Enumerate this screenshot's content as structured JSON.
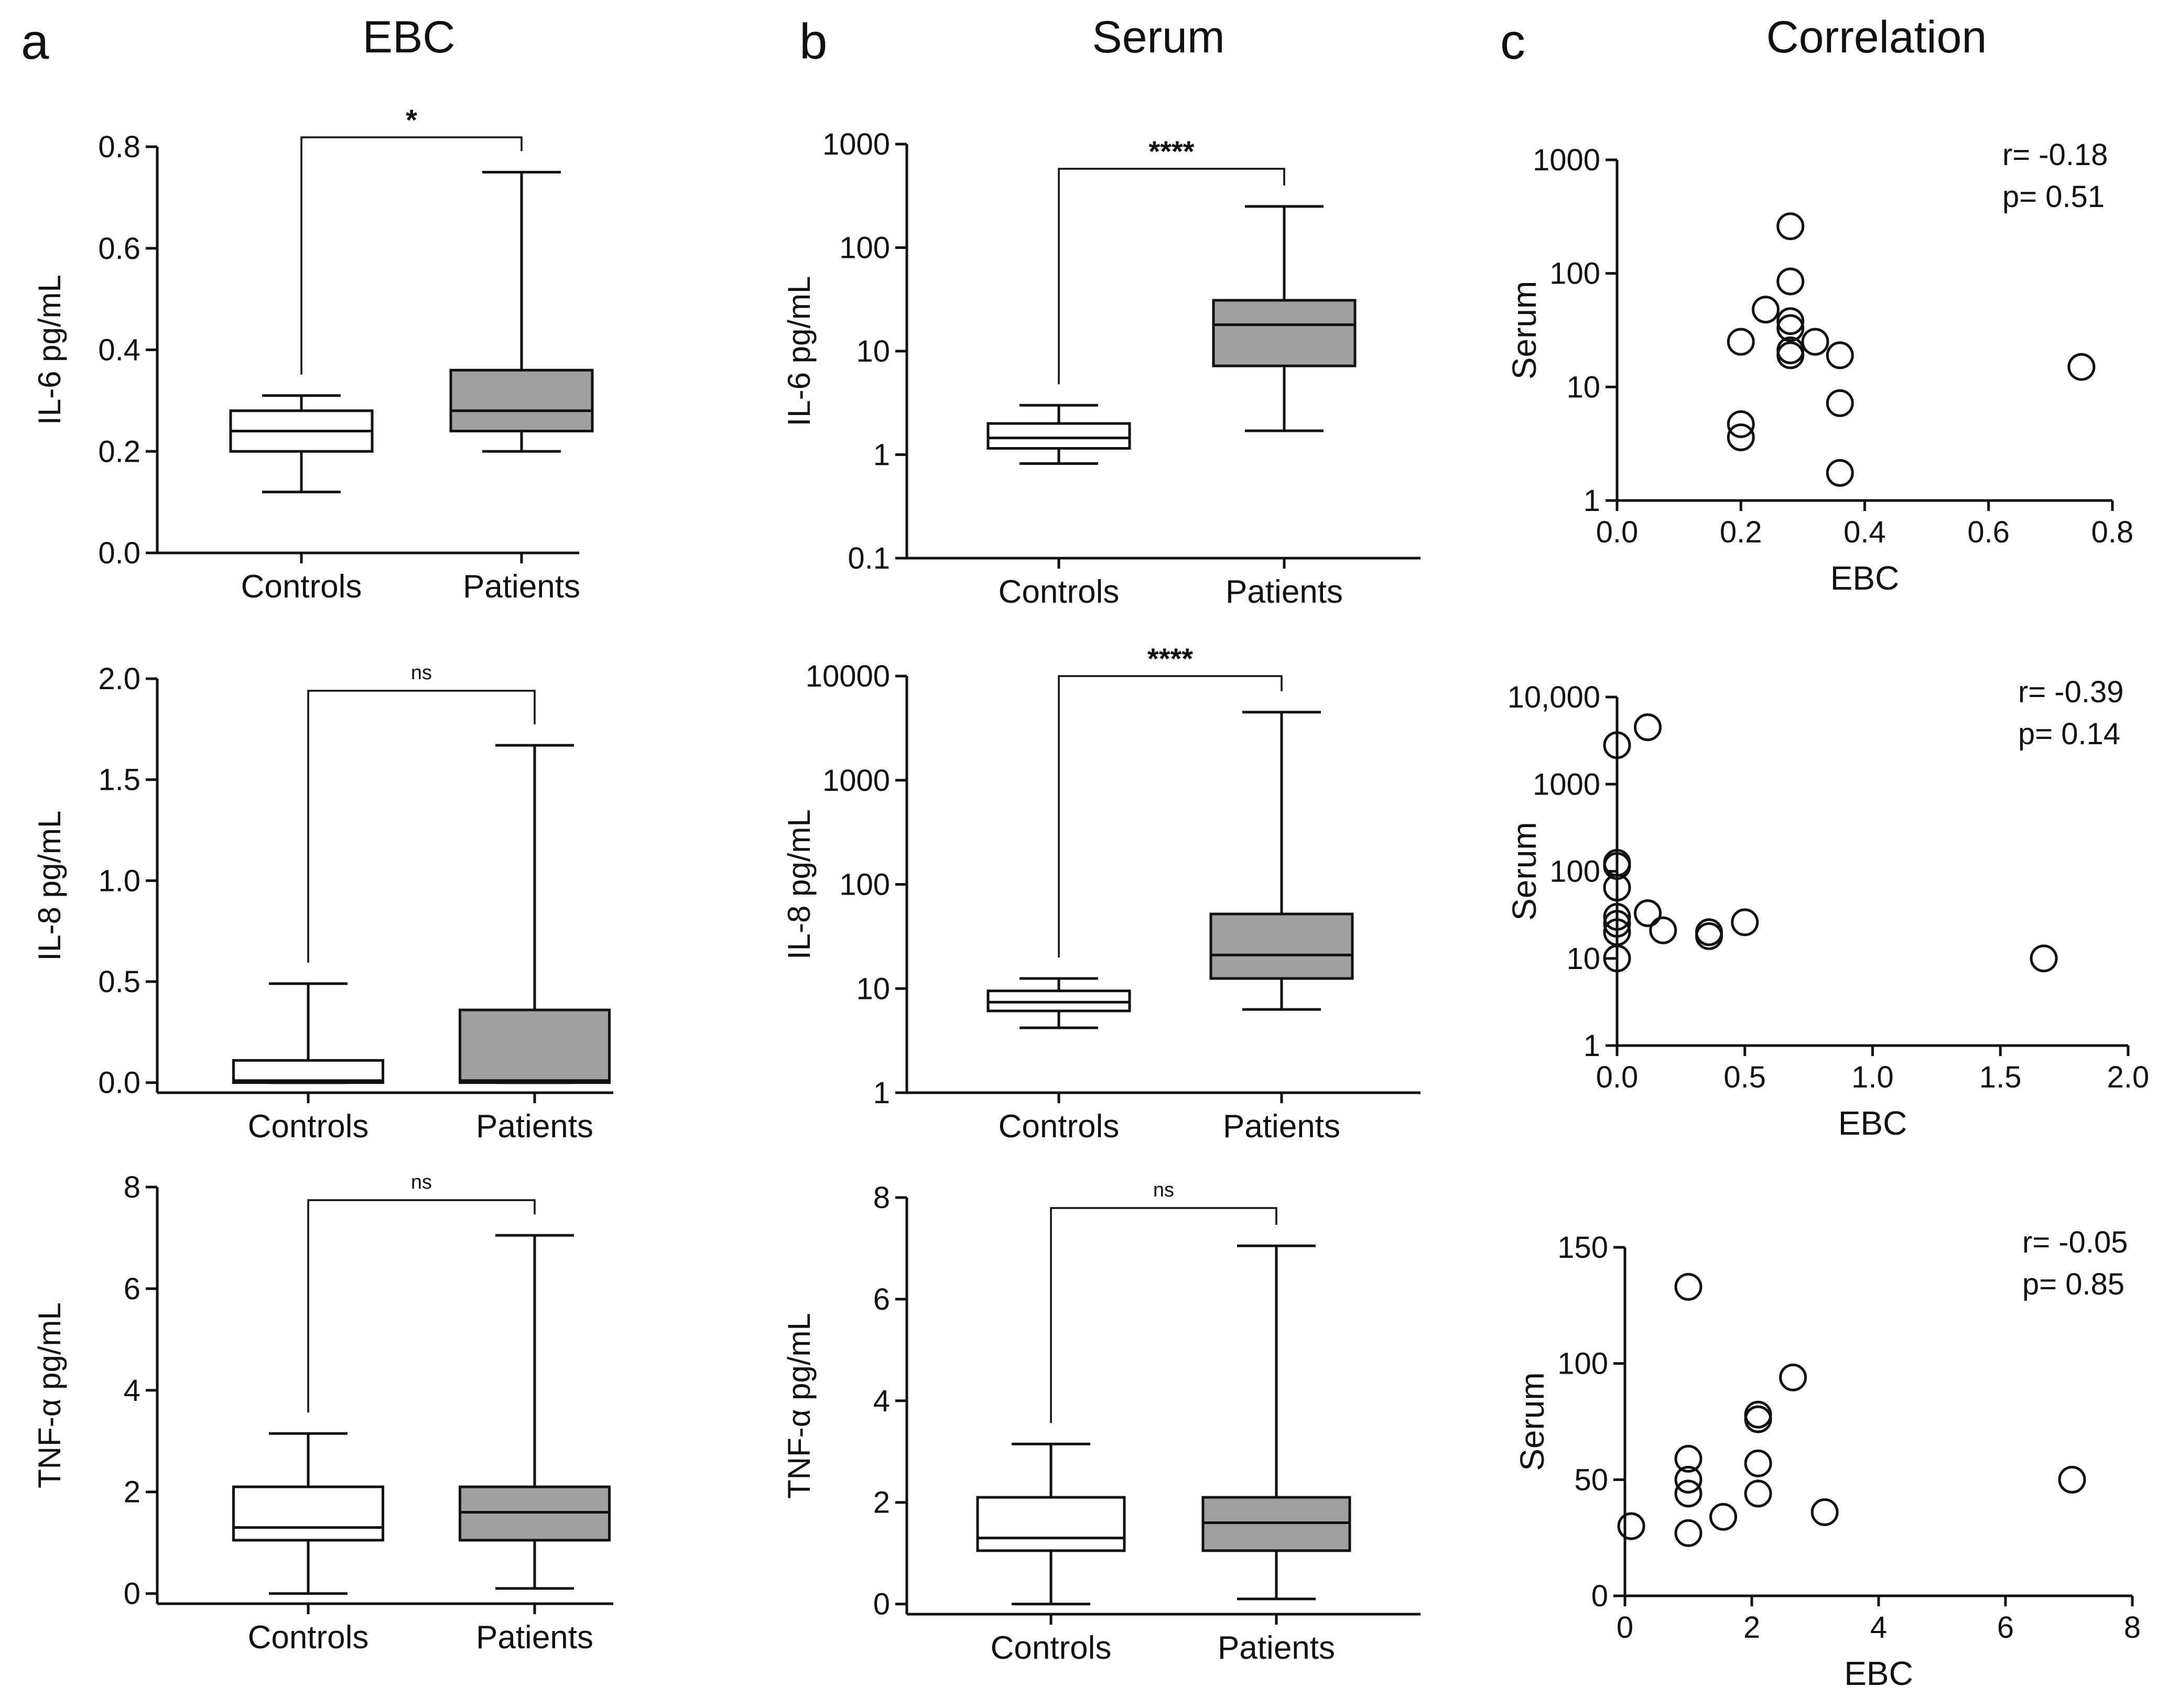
{
  "panels": {
    "a": {
      "letter": "a",
      "title": "EBC"
    },
    "b": {
      "letter": "b",
      "title": "Serum"
    },
    "c": {
      "letter": "c",
      "title": "Correlation"
    }
  },
  "colors": {
    "controls_box": "#ffffff",
    "patients_box": "#a0a0a0",
    "ink": "#111111"
  },
  "chart_data": [
    {
      "id": "ebc_il6",
      "type": "boxplot",
      "ylabel": "IL-6 pg/mL",
      "yscale": "linear",
      "ylim": [
        0,
        0.8
      ],
      "yticks": [
        "0.0",
        "0.2",
        "0.4",
        "0.6",
        "0.8"
      ],
      "ytick_values": [
        0,
        0.2,
        0.4,
        0.6,
        0.8
      ],
      "significance": "*",
      "groups": [
        {
          "label": "Controls",
          "min": 0.12,
          "q1": 0.2,
          "median": 0.24,
          "q3": 0.28,
          "max": 0.31
        },
        {
          "label": "Patients",
          "min": 0.2,
          "q1": 0.24,
          "median": 0.28,
          "q3": 0.36,
          "max": 0.75
        }
      ]
    },
    {
      "id": "ebc_il8",
      "type": "boxplot",
      "ylabel": "IL-8 pg/mL",
      "yscale": "linear",
      "ylim": [
        -0.05,
        2.0
      ],
      "yticks": [
        "0.0",
        "0.5",
        "1.0",
        "1.5",
        "2.0"
      ],
      "ytick_values": [
        0,
        0.5,
        1.0,
        1.5,
        2.0
      ],
      "significance": "ns",
      "groups": [
        {
          "label": "Controls",
          "min": 0.0,
          "q1": 0.0,
          "median": 0.01,
          "q3": 0.11,
          "max": 0.49
        },
        {
          "label": "Patients",
          "min": 0.0,
          "q1": 0.0,
          "median": 0.01,
          "q3": 0.36,
          "max": 1.67
        }
      ]
    },
    {
      "id": "ebc_tnf",
      "type": "boxplot",
      "ylabel": "TNF-α pg/mL",
      "yscale": "linear",
      "ylim": [
        -0.2,
        8
      ],
      "yticks": [
        "0",
        "2",
        "4",
        "6",
        "8"
      ],
      "ytick_values": [
        0,
        2,
        4,
        6,
        8
      ],
      "significance": "ns",
      "groups": [
        {
          "label": "Controls",
          "min": 0.0,
          "q1": 1.05,
          "median": 1.3,
          "q3": 2.1,
          "max": 3.15
        },
        {
          "label": "Patients",
          "min": 0.1,
          "q1": 1.05,
          "median": 1.6,
          "q3": 2.1,
          "max": 7.05
        }
      ]
    },
    {
      "id": "serum_il6",
      "type": "boxplot",
      "ylabel": "IL-6 pg/mL",
      "yscale": "log",
      "ylim": [
        0.1,
        1000
      ],
      "yticks": [
        "0.1",
        "1",
        "10",
        "100",
        "1000"
      ],
      "ytick_values": [
        0.1,
        1,
        10,
        100,
        1000
      ],
      "significance": "****",
      "groups": [
        {
          "label": "Controls",
          "min": 0.82,
          "q1": 1.15,
          "median": 1.45,
          "q3": 2.0,
          "max": 3.0
        },
        {
          "label": "Patients",
          "min": 1.7,
          "q1": 7.2,
          "median": 18,
          "q3": 31,
          "max": 250
        }
      ]
    },
    {
      "id": "serum_il8",
      "type": "boxplot",
      "ylabel": "IL-8 pg/mL",
      "yscale": "log",
      "ylim": [
        1,
        10000
      ],
      "yticks": [
        "1",
        "10",
        "100",
        "1000",
        "10000"
      ],
      "ytick_values": [
        1,
        10,
        100,
        1000,
        10000
      ],
      "significance": "****",
      "groups": [
        {
          "label": "Controls",
          "min": 4.2,
          "q1": 6.1,
          "median": 7.4,
          "q3": 9.5,
          "max": 12.5
        },
        {
          "label": "Patients",
          "min": 6.3,
          "q1": 12.5,
          "median": 21,
          "q3": 52,
          "max": 4500
        }
      ]
    },
    {
      "id": "serum_tnf",
      "type": "boxplot",
      "ylabel": "TNF-α pg/mL",
      "yscale": "linear",
      "ylim": [
        -0.2,
        8
      ],
      "yticks": [
        "0",
        "2",
        "4",
        "6",
        "8"
      ],
      "ytick_values": [
        0,
        2,
        4,
        6,
        8
      ],
      "significance": "ns",
      "groups": [
        {
          "label": "Controls",
          "min": 0.0,
          "q1": 1.05,
          "median": 1.3,
          "q3": 2.1,
          "max": 3.15
        },
        {
          "label": "Patients",
          "min": 0.1,
          "q1": 1.05,
          "median": 1.6,
          "q3": 2.1,
          "max": 7.05
        }
      ]
    },
    {
      "id": "corr_il6",
      "type": "scatter",
      "xlabel": "EBC",
      "ylabel": "Serum",
      "yscale": "log",
      "xlim": [
        0,
        0.8
      ],
      "xticks": [
        "0.0",
        "0.2",
        "0.4",
        "0.6",
        "0.8"
      ],
      "xtick_values": [
        0,
        0.2,
        0.4,
        0.6,
        0.8
      ],
      "ylim": [
        1,
        1000
      ],
      "yticks": [
        "1",
        "10",
        "100",
        "1000"
      ],
      "ytick_values": [
        1,
        10,
        100,
        1000
      ],
      "r": "r= -0.18",
      "p": "p= 0.51",
      "points": [
        [
          0.28,
          260
        ],
        [
          0.28,
          85
        ],
        [
          0.24,
          48
        ],
        [
          0.28,
          38
        ],
        [
          0.28,
          33
        ],
        [
          0.2,
          25
        ],
        [
          0.32,
          25
        ],
        [
          0.28,
          21
        ],
        [
          0.28,
          19
        ],
        [
          0.36,
          19
        ],
        [
          0.75,
          15
        ],
        [
          0.36,
          7.2
        ],
        [
          0.2,
          4.7
        ],
        [
          0.2,
          3.6
        ],
        [
          0.36,
          1.75
        ]
      ]
    },
    {
      "id": "corr_il8",
      "type": "scatter",
      "xlabel": "EBC",
      "ylabel": "Serum",
      "yscale": "log",
      "xlim": [
        0,
        2.0
      ],
      "xticks": [
        "0.0",
        "0.5",
        "1.0",
        "1.5",
        "2.0"
      ],
      "xtick_values": [
        0,
        0.5,
        1.0,
        1.5,
        2.0
      ],
      "ylim": [
        1,
        10000
      ],
      "yticks": [
        "1",
        "10",
        "100",
        "1000",
        "10,000"
      ],
      "ytick_values": [
        1,
        10,
        100,
        1000,
        10000
      ],
      "r": "r= -0.39",
      "p": "p= 0.14",
      "points": [
        [
          0.12,
          4500
        ],
        [
          0.0,
          2800
        ],
        [
          0.0,
          125
        ],
        [
          0.0,
          115
        ],
        [
          0.0,
          65
        ],
        [
          0.0,
          30
        ],
        [
          0.0,
          25
        ],
        [
          0.0,
          20
        ],
        [
          0.0,
          10
        ],
        [
          0.12,
          33
        ],
        [
          0.18,
          21
        ],
        [
          0.36,
          20
        ],
        [
          0.36,
          18
        ],
        [
          0.5,
          26
        ],
        [
          1.67,
          10
        ]
      ]
    },
    {
      "id": "corr_tnf",
      "type": "scatter",
      "xlabel": "EBC",
      "ylabel": "Serum",
      "yscale": "linear",
      "xlim": [
        0,
        8
      ],
      "xticks": [
        "0",
        "2",
        "4",
        "6",
        "8"
      ],
      "xtick_values": [
        0,
        2,
        4,
        6,
        8
      ],
      "ylim": [
        0,
        150
      ],
      "yticks": [
        "0",
        "50",
        "100",
        "150"
      ],
      "ytick_values": [
        0,
        50,
        100,
        150
      ],
      "r": "r= -0.05",
      "p": "p= 0.85",
      "points": [
        [
          1.0,
          133
        ],
        [
          2.65,
          94
        ],
        [
          2.1,
          78
        ],
        [
          2.1,
          76
        ],
        [
          1.0,
          59
        ],
        [
          2.1,
          57
        ],
        [
          1.0,
          50
        ],
        [
          7.05,
          50
        ],
        [
          1.0,
          44
        ],
        [
          2.1,
          44
        ],
        [
          3.15,
          36
        ],
        [
          1.55,
          34
        ],
        [
          0.1,
          30
        ],
        [
          1.0,
          27
        ]
      ]
    }
  ]
}
